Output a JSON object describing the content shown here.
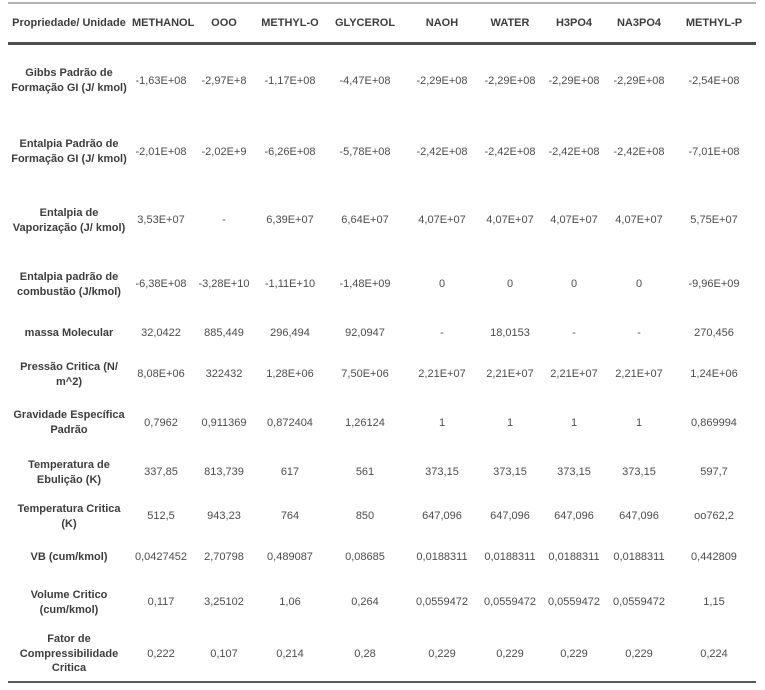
{
  "table": {
    "columns": [
      "Propriedade/ Unidade",
      "METHANOL",
      "OOO",
      "METHYL-O",
      "GLYCEROL",
      "NAOH",
      "WATER",
      "H3PO4",
      "NA3PO4",
      "METHYL-P"
    ],
    "rows": [
      {
        "label": "Gibbs Padrão de Formação GI (J/ kmol)",
        "values": [
          "-1,63E+08",
          "-2,97E+8",
          "-1,17E+08",
          "-4,47E+08",
          "-2,29E+08",
          "-2,29E+08",
          "-2,29E+08",
          "-2,29E+08",
          "-2,54E+08"
        ]
      },
      {
        "label": "Entalpia Padrão de Formação GI (J/ kmol)",
        "values": [
          "-2,01E+08",
          "-2,02E+9",
          "-6,26E+08",
          "-5,78E+08",
          "-2,42E+08",
          "-2,42E+08",
          "-2,42E+08",
          "-2,42E+08",
          "-7,01E+08"
        ]
      },
      {
        "label": "Entalpia de Vaporização (J/ kmol)",
        "values": [
          "3,53E+07",
          "-",
          "6,39E+07",
          "6,64E+07",
          "4,07E+07",
          "4,07E+07",
          "4,07E+07",
          "4,07E+07",
          "5,75E+07"
        ]
      },
      {
        "label": "Entalpia padrão de combustão (J/kmol)",
        "values": [
          "-6,38E+08",
          "-3,28E+10",
          "-1,11E+10",
          "-1,48E+09",
          "0",
          "0",
          "0",
          "0",
          "-9,96E+09"
        ]
      },
      {
        "label": "massa Molecular",
        "values": [
          "32,0422",
          "885,449",
          "296,494",
          "92,0947",
          "-",
          "18,0153",
          "-",
          "-",
          "270,456"
        ]
      },
      {
        "label": "Pressão Critica (N/ m^2)",
        "values": [
          "8,08E+06",
          "322432",
          "1,28E+06",
          "7,50E+06",
          "2,21E+07",
          "2,21E+07",
          "2,21E+07",
          "2,21E+07",
          "1,24E+06"
        ]
      },
      {
        "label": "Gravidade Específica Padrão",
        "values": [
          "0,7962",
          "0,911369",
          "0,872404",
          "1,26124",
          "1",
          "1",
          "1",
          "1",
          "0,869994"
        ]
      },
      {
        "label": "Temperatura de Ebulição (K)",
        "values": [
          "337,85",
          "813,739",
          "617",
          "561",
          "373,15",
          "373,15",
          "373,15",
          "373,15",
          "597,7"
        ]
      },
      {
        "label": "Temperatura Critica (K)",
        "values": [
          "512,5",
          "943,23",
          "764",
          "850",
          "647,096",
          "647,096",
          "647,096",
          "647,096",
          "oo762,2"
        ]
      },
      {
        "label": "VB (cum/kmol)",
        "values": [
          "0,0427452",
          "2,70798",
          "0,489087",
          "0,08685",
          "0,0188311",
          "0,0188311",
          "0,0188311",
          "0,0188311",
          "0,442809"
        ]
      },
      {
        "label": "Volume Critico (cum/kmol)",
        "values": [
          "0,117",
          "3,25102",
          "1,06",
          "0,264",
          "0,0559472",
          "0,0559472",
          "0,0559472",
          "0,0559472",
          "1,15"
        ]
      },
      {
        "label": "Fator de Compressibilidade Critica",
        "values": [
          "0,222",
          "0,107",
          "0,214",
          "0,28",
          "0,229",
          "0,229",
          "0,229",
          "0,229",
          "0,224"
        ]
      }
    ]
  },
  "colors": {
    "header_text": "#3d3d3d",
    "value_text": "#4c4c4c",
    "rule_dark": "#4f4f4f",
    "rule_light": "#b3b3b3",
    "background": "#ffffff"
  }
}
